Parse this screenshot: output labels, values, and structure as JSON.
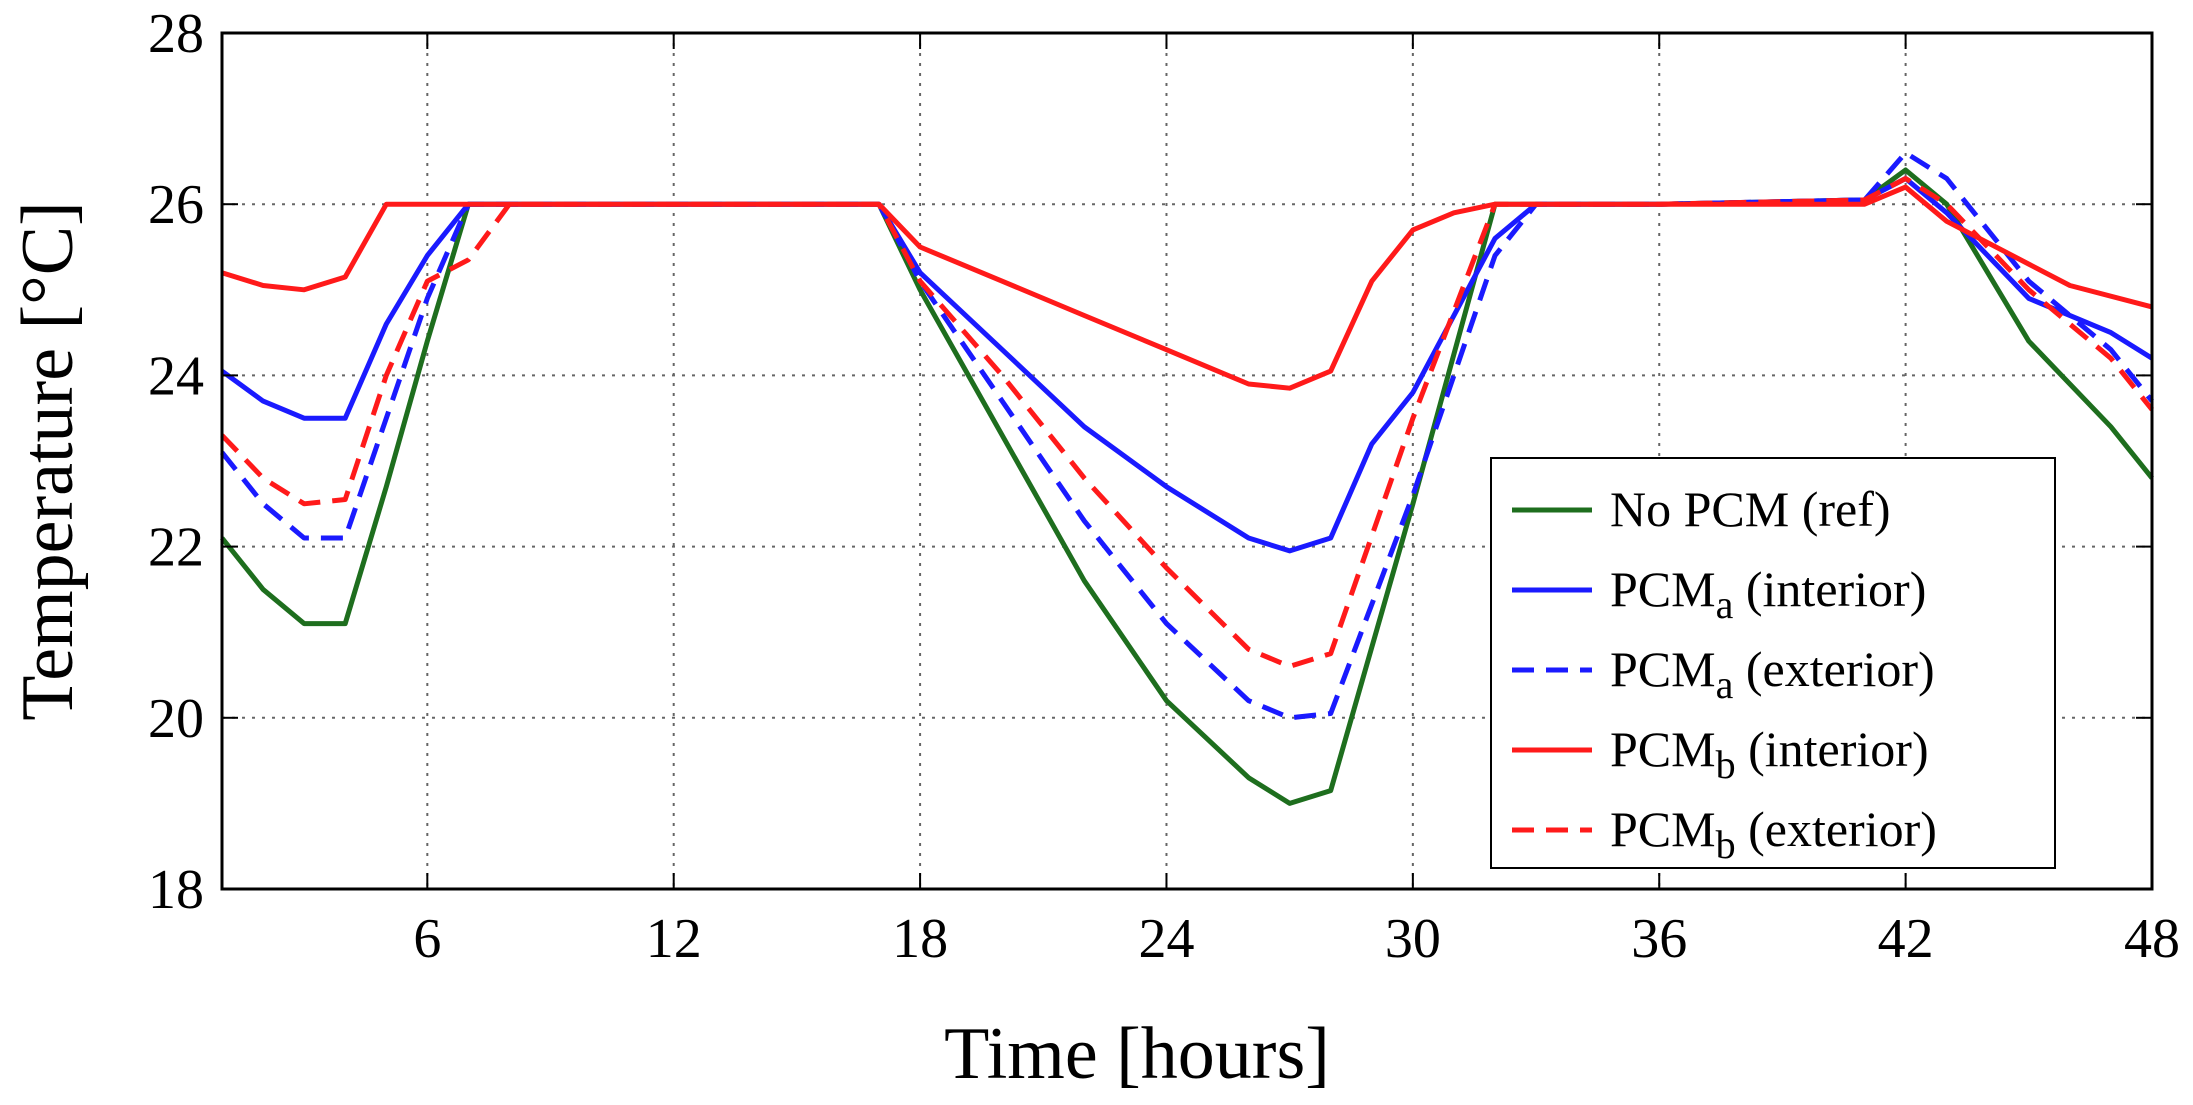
{
  "chart_data": {
    "type": "line",
    "title": "",
    "xlabel": "Time [hours]",
    "ylabel": "Temperature [°C]",
    "xlim": [
      1,
      48
    ],
    "ylim": [
      18,
      28
    ],
    "xticks": [
      6,
      12,
      18,
      24,
      30,
      36,
      42,
      48
    ],
    "yticks": [
      18,
      20,
      22,
      24,
      26,
      28
    ],
    "grid": true,
    "legend_position": "right",
    "series": [
      {
        "name": "No PCM (ref)",
        "legend_main": "No PCM (ref)",
        "legend_sub": "",
        "legend_tail": "",
        "color": "#1e6e1e",
        "dash": "solid",
        "x": [
          1,
          2,
          3,
          4,
          5,
          6,
          7,
          17,
          18,
          20,
          22,
          24,
          26,
          27,
          28,
          30,
          32,
          33,
          36,
          41,
          42,
          43,
          45,
          47,
          48
        ],
        "y": [
          22.1,
          21.5,
          21.1,
          21.1,
          22.7,
          24.4,
          26.0,
          26.0,
          25.0,
          23.3,
          21.6,
          20.2,
          19.3,
          19.0,
          19.15,
          22.5,
          26.0,
          26.0,
          26.0,
          26.05,
          26.4,
          26.0,
          24.4,
          23.4,
          22.8
        ]
      },
      {
        "name": "PCMa (interior)",
        "legend_main": "PCM",
        "legend_sub": "a",
        "legend_tail": " (interior)",
        "color": "#1a1aff",
        "dash": "solid",
        "x": [
          1,
          2,
          3,
          4,
          5,
          6,
          7,
          17,
          18,
          20,
          22,
          24,
          26,
          27,
          28,
          29,
          30,
          32,
          33,
          36,
          41,
          42,
          43,
          45,
          47,
          48
        ],
        "y": [
          24.05,
          23.7,
          23.5,
          23.5,
          24.6,
          25.4,
          26.0,
          26.0,
          25.2,
          24.3,
          23.4,
          22.7,
          22.1,
          21.95,
          22.1,
          23.2,
          23.8,
          25.6,
          26.0,
          26.0,
          26.05,
          26.3,
          25.9,
          24.9,
          24.5,
          24.2
        ]
      },
      {
        "name": "PCMa (exterior)",
        "legend_main": "PCM",
        "legend_sub": "a",
        "legend_tail": " (exterior)",
        "color": "#1a1aff",
        "dash": "dashed",
        "x": [
          1,
          2,
          3,
          4,
          5,
          6,
          7,
          17,
          18,
          20,
          22,
          24,
          26,
          27,
          28,
          30,
          32,
          33,
          36,
          41,
          42,
          43,
          45,
          47,
          48
        ],
        "y": [
          23.1,
          22.5,
          22.1,
          22.1,
          23.5,
          24.9,
          26.0,
          26.0,
          25.1,
          23.7,
          22.3,
          21.1,
          20.2,
          20.0,
          20.05,
          22.6,
          25.4,
          26.0,
          26.0,
          26.05,
          26.6,
          26.3,
          25.1,
          24.3,
          23.7
        ]
      },
      {
        "name": "PCMb (interior)",
        "legend_main": "PCM",
        "legend_sub": "b",
        "legend_tail": " (interior)",
        "color": "#ff1a1a",
        "dash": "solid",
        "x": [
          1,
          2,
          3,
          4,
          5,
          6,
          17,
          18,
          20,
          22,
          24,
          26,
          27,
          28,
          29,
          30,
          31,
          32,
          36,
          41,
          42,
          43,
          45,
          46,
          48
        ],
        "y": [
          25.2,
          25.05,
          25.0,
          25.15,
          26.0,
          26.0,
          26.0,
          25.5,
          25.1,
          24.7,
          24.3,
          23.9,
          23.85,
          24.05,
          25.1,
          25.7,
          25.9,
          26.0,
          26.0,
          26.0,
          26.2,
          25.8,
          25.3,
          25.05,
          24.8
        ]
      },
      {
        "name": "PCMb (exterior)",
        "legend_main": "PCM",
        "legend_sub": "b",
        "legend_tail": " (exterior)",
        "color": "#ff1a1a",
        "dash": "dashed",
        "x": [
          1,
          2,
          3,
          4,
          5,
          6,
          7,
          8,
          17,
          18,
          20,
          22,
          24,
          26,
          27,
          28,
          30,
          32,
          33,
          36,
          41,
          42,
          43,
          45,
          47,
          48
        ],
        "y": [
          23.3,
          22.8,
          22.5,
          22.55,
          24.0,
          25.1,
          25.35,
          26.0,
          26.0,
          25.1,
          24.0,
          22.8,
          21.75,
          20.8,
          20.6,
          20.75,
          23.5,
          26.0,
          26.0,
          26.0,
          26.05,
          26.3,
          26.0,
          25.0,
          24.2,
          23.6
        ]
      }
    ]
  }
}
